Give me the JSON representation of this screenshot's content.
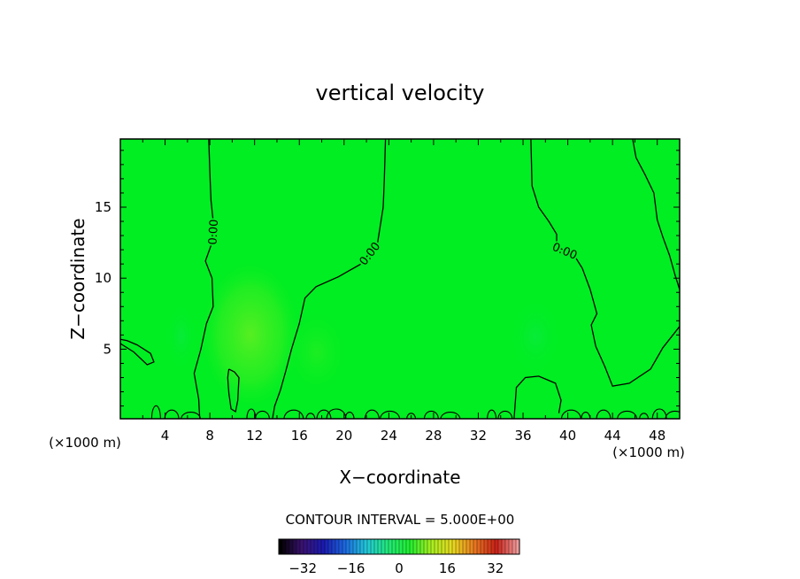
{
  "chart_data": {
    "type": "heatmap",
    "title": "vertical velocity",
    "xlabel": "X−coordinate",
    "ylabel": "Z−coordinate",
    "x_unit_left": "(×1000 m)",
    "x_unit_right": "(×1000 m)",
    "xlim": [
      0,
      50
    ],
    "ylim": [
      0.1,
      19.8
    ],
    "x_ticks": [
      4,
      8,
      12,
      16,
      20,
      24,
      28,
      32,
      36,
      40,
      44,
      48
    ],
    "y_ticks": [
      5,
      10,
      15
    ],
    "contour_interval_text": "CONTOUR INTERVAL = 5.000E+00",
    "field_color": "#00ee22",
    "updraft_color": "#66ee22",
    "contours": [
      {
        "label": "0.00",
        "points": [
          [
            7.9,
            19.8
          ],
          [
            8.0,
            17.5
          ],
          [
            8.1,
            15.5
          ],
          [
            8.3,
            14.0
          ],
          [
            8.2,
            12.5
          ],
          [
            7.6,
            11.2
          ],
          [
            8.2,
            10.0
          ],
          [
            8.3,
            8.0
          ],
          [
            7.7,
            6.8
          ],
          [
            7.2,
            5.0
          ],
          [
            6.6,
            3.3
          ],
          [
            7.0,
            1.5
          ],
          [
            7.1,
            0.1
          ]
        ]
      },
      {
        "label": "0.00",
        "points": [
          [
            23.7,
            19.8
          ],
          [
            23.6,
            17.0
          ],
          [
            23.5,
            15.0
          ],
          [
            23.0,
            12.5
          ],
          [
            21.5,
            11.0
          ],
          [
            19.5,
            10.1
          ],
          [
            17.5,
            9.4
          ],
          [
            16.5,
            8.6
          ],
          [
            16.0,
            6.8
          ],
          [
            15.3,
            5.0
          ],
          [
            14.8,
            3.5
          ],
          [
            14.3,
            2.1
          ],
          [
            13.8,
            1.0
          ],
          [
            13.6,
            0.1
          ]
        ]
      },
      {
        "label": "0.00",
        "points": [
          [
            36.7,
            19.8
          ],
          [
            36.8,
            16.5
          ],
          [
            37.4,
            15.0
          ],
          [
            38.3,
            14.0
          ],
          [
            39.0,
            13.1
          ],
          [
            39.0,
            12.2
          ],
          [
            40.5,
            11.7
          ],
          [
            41.3,
            10.7
          ],
          [
            42.0,
            9.2
          ],
          [
            42.6,
            7.5
          ],
          [
            42.1,
            6.7
          ],
          [
            42.5,
            5.2
          ],
          [
            43.3,
            3.8
          ],
          [
            44.0,
            2.4
          ],
          [
            45.5,
            2.6
          ],
          [
            47.4,
            3.6
          ],
          [
            48.5,
            5.1
          ],
          [
            50.0,
            6.6
          ]
        ]
      },
      {
        "label": "",
        "points": [
          [
            45.8,
            19.8
          ],
          [
            46.1,
            18.5
          ],
          [
            46.9,
            17.3
          ],
          [
            47.7,
            16.0
          ],
          [
            48.0,
            14.1
          ],
          [
            48.5,
            12.9
          ],
          [
            49.1,
            11.6
          ],
          [
            49.6,
            10.2
          ],
          [
            50.0,
            9.2
          ]
        ]
      },
      {
        "label": "",
        "points": [
          [
            0.0,
            5.7
          ],
          [
            0.6,
            5.6
          ],
          [
            1.5,
            5.3
          ],
          [
            2.7,
            4.7
          ],
          [
            3.0,
            4.1
          ],
          [
            2.4,
            3.9
          ],
          [
            1.2,
            4.8
          ],
          [
            0.0,
            5.4
          ]
        ]
      },
      {
        "label": "",
        "points": [
          [
            9.7,
            3.6
          ],
          [
            10.2,
            3.4
          ],
          [
            10.6,
            3.0
          ],
          [
            10.5,
            1.4
          ],
          [
            10.3,
            0.6
          ],
          [
            9.9,
            0.8
          ],
          [
            9.7,
            1.9
          ],
          [
            9.6,
            3.0
          ],
          [
            9.7,
            3.6
          ]
        ]
      },
      {
        "label": "",
        "points": [
          [
            35.2,
            0.1
          ],
          [
            35.4,
            2.3
          ],
          [
            36.2,
            3.0
          ],
          [
            37.4,
            3.1
          ],
          [
            38.9,
            2.6
          ],
          [
            39.4,
            1.4
          ],
          [
            39.2,
            0.5
          ]
        ]
      }
    ],
    "colorbar": {
      "ticks": [
        -32,
        -16,
        0,
        16,
        32
      ],
      "range": [
        -40,
        40
      ],
      "colors": [
        "#000000",
        "#3a1270",
        "#1a1ab0",
        "#1d6ae0",
        "#22c8d8",
        "#22e878",
        "#20ee30",
        "#a8ee20",
        "#e8d820",
        "#e87820",
        "#c82018",
        "#f09a9a"
      ]
    }
  }
}
